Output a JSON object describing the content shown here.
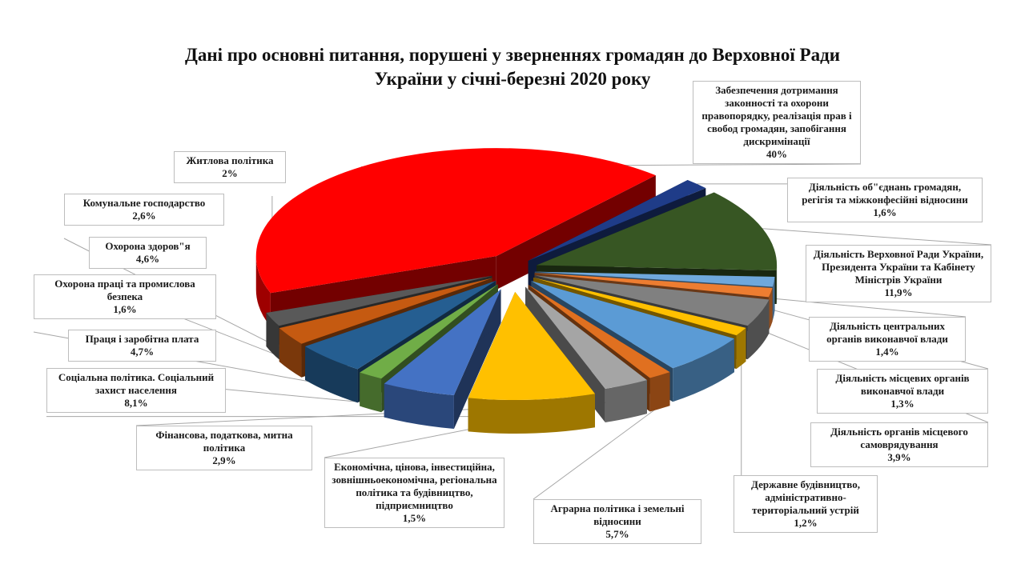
{
  "chart_data": {
    "type": "pie",
    "title": "Дані про основні питання, порушені у зверненнях громадян до Верховної Ради України у січні-березні 2020 року",
    "title_lines": [
      "Дані про основні питання, порушені у зверненнях громадян до Верховної Ради",
      "України у січні-березні 2020 року"
    ],
    "legend": "none",
    "slices": [
      {
        "label": "Забезпечення дотримання законності та охорони правопорядку, реалізація прав і свобод громадян, запобігання дискримінації",
        "value": 40,
        "value_label": "40%",
        "color": "#ff0000"
      },
      {
        "label": "Діяльність об\"єднань громадян, регігія та міжконфесійні відносини",
        "value": 1.6,
        "value_label": "1,6%",
        "color": "#1f3c88"
      },
      {
        "label": "Діяльність Верховної Ради України, Президента України та Кабінету Міністрів України",
        "value": 11.9,
        "value_label": "11,9%",
        "color": "#375623"
      },
      {
        "label": "Діяльність центральних органів виконавчої влади",
        "value": 1.4,
        "value_label": "1,4%",
        "color": "#6fa8dc"
      },
      {
        "label": "Діяльність місцевих органів виконавчої влади",
        "value": 1.3,
        "value_label": "1,3%",
        "color": "#ed7d31"
      },
      {
        "label": "Діяльність органів місцевого самоврядування",
        "value": 3.9,
        "value_label": "3,9%",
        "color": "#808080"
      },
      {
        "label": "Державне будівництво, адміністративно-територіальний устрій",
        "value": 1.2,
        "value_label": "1,2%",
        "color": "#ffc000"
      },
      {
        "label": "Аграрна  політика і земельні відносини",
        "value": 5.7,
        "value_label": "5,7%",
        "color": "#5b9bd5"
      },
      {
        "label": "Економічна, цінова, інвестиційна, зовнішньоекономічна, регіональна політика та будівництво, підприємництво",
        "value": 1.5,
        "value_label": "1,5%",
        "color": "#e07020"
      },
      {
        "label": "Фінансова, податкова, митна політика",
        "value": 2.9,
        "value_label": "2,9%",
        "color": "#a5a5a5"
      },
      {
        "label": "Соціальна політика. Соціальний захист населення",
        "value": 8.1,
        "value_label": "8,1%",
        "color": "#ffc000"
      },
      {
        "label": "Праця і заробітна плата",
        "value": 4.7,
        "value_label": "4,7%",
        "color": "#4472c4"
      },
      {
        "label": "Охорона праці та промислова безпека",
        "value": 1.6,
        "value_label": "1,6%",
        "color": "#70ad47"
      },
      {
        "label": "Охорона здоров\"я",
        "value": 4.6,
        "value_label": "4,6%",
        "color": "#255e91"
      },
      {
        "label": "Комунальне господарство",
        "value": 2.6,
        "value_label": "2,6%",
        "color": "#c55a11"
      },
      {
        "label": "Житлова політика",
        "value": 2,
        "value_label": "2%",
        "color": "#595959"
      }
    ]
  }
}
